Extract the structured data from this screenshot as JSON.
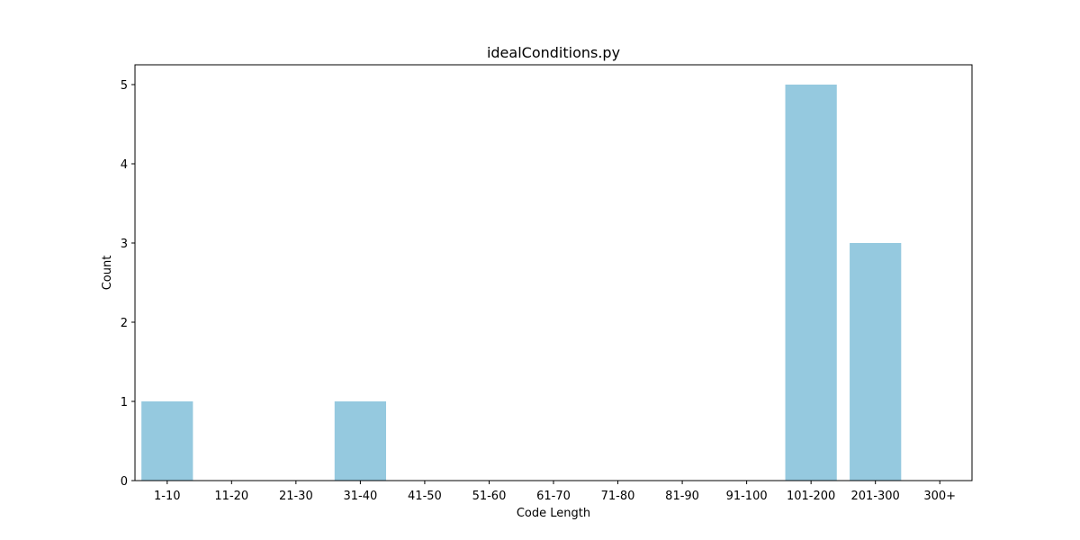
{
  "chart_data": {
    "type": "bar",
    "title": "idealConditions.py",
    "xlabel": "Code Length",
    "ylabel": "Count",
    "categories": [
      "1-10",
      "11-20",
      "21-30",
      "31-40",
      "41-50",
      "51-60",
      "61-70",
      "71-80",
      "81-90",
      "91-100",
      "101-200",
      "201-300",
      "300+"
    ],
    "values": [
      1,
      0,
      0,
      1,
      0,
      0,
      0,
      0,
      0,
      0,
      5,
      3,
      0
    ],
    "ylim": [
      0,
      5.25
    ],
    "yticks": [
      0,
      1,
      2,
      3,
      4,
      5
    ],
    "bar_color": "#95c9df",
    "grid": false,
    "legend": "none"
  }
}
